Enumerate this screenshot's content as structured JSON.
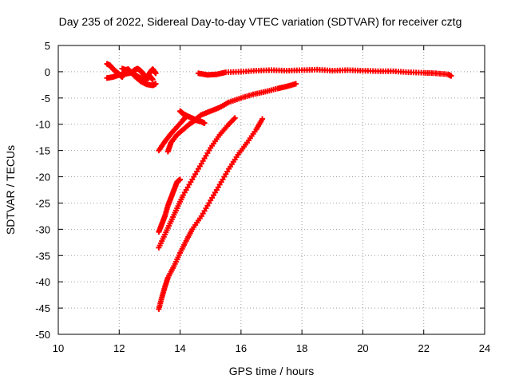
{
  "chart_data": {
    "type": "scatter",
    "title": "Day 235 of 2022, Sidereal Day-to-day VTEC variation (SDTVAR) for receiver cztg",
    "xlabel": "GPS time / hours",
    "ylabel": "SDTVAR / TECUs",
    "xlim": [
      10,
      24
    ],
    "ylim": [
      -50,
      5
    ],
    "xticks": [
      10,
      12,
      14,
      16,
      18,
      20,
      22,
      24
    ],
    "yticks": [
      5,
      0,
      -5,
      -10,
      -15,
      -20,
      -25,
      -30,
      -35,
      -40,
      -45,
      -50
    ],
    "grid": true,
    "legend": "none",
    "marker": "plus",
    "color": "#ff0000",
    "series": [
      {
        "points": [
          [
            11.6,
            1.5
          ],
          [
            11.7,
            1.2
          ],
          [
            11.8,
            0.5
          ],
          [
            11.9,
            0.0
          ],
          [
            12.0,
            -0.5
          ],
          [
            12.1,
            -1.0
          ],
          [
            12.2,
            0.3
          ],
          [
            12.3,
            0.5
          ],
          [
            12.5,
            -0.8
          ],
          [
            12.7,
            -1.8
          ],
          [
            12.9,
            -2.4
          ],
          [
            13.1,
            -2.6
          ],
          [
            13.2,
            -2.3
          ]
        ]
      },
      {
        "points": [
          [
            11.6,
            -1.2
          ],
          [
            11.8,
            -1.0
          ],
          [
            12.0,
            -0.6
          ],
          [
            12.2,
            -0.4
          ],
          [
            12.4,
            -0.2
          ],
          [
            12.5,
            0.3
          ],
          [
            12.6,
            0.6
          ],
          [
            12.7,
            0.2
          ],
          [
            12.8,
            -0.5
          ],
          [
            12.9,
            -1.0
          ],
          [
            13.0,
            -0.8
          ],
          [
            13.1,
            -1.5
          ]
        ]
      },
      {
        "points": [
          [
            12.1,
            0.6
          ],
          [
            12.3,
            0.2
          ],
          [
            12.5,
            -0.5
          ],
          [
            12.7,
            -1.2
          ],
          [
            12.9,
            -1.6
          ],
          [
            13.0,
            -0.2
          ],
          [
            13.1,
            0.5
          ],
          [
            13.2,
            -0.3
          ]
        ]
      },
      {
        "points": [
          [
            14.6,
            -0.3
          ],
          [
            14.9,
            -0.6
          ],
          [
            15.2,
            -0.5
          ],
          [
            15.5,
            -0.1
          ],
          [
            16.0,
            0.0
          ],
          [
            16.5,
            0.2
          ],
          [
            17.0,
            0.3
          ],
          [
            17.5,
            0.2
          ],
          [
            18.0,
            0.3
          ],
          [
            18.5,
            0.4
          ],
          [
            19.0,
            0.2
          ],
          [
            19.5,
            0.3
          ],
          [
            20.0,
            0.2
          ],
          [
            20.5,
            0.1
          ],
          [
            21.0,
            0.1
          ],
          [
            21.5,
            -0.1
          ],
          [
            22.0,
            -0.2
          ],
          [
            22.4,
            -0.3
          ],
          [
            22.8,
            -0.5
          ],
          [
            22.9,
            -0.8
          ]
        ]
      },
      {
        "points": [
          [
            13.3,
            -15.0
          ],
          [
            13.5,
            -13.3
          ],
          [
            13.7,
            -11.8
          ],
          [
            13.9,
            -10.5
          ],
          [
            14.1,
            -9.2
          ],
          [
            14.2,
            -8.5
          ]
        ]
      },
      {
        "points": [
          [
            14.0,
            -7.5
          ],
          [
            14.1,
            -8.0
          ],
          [
            14.3,
            -8.6
          ],
          [
            14.5,
            -9.1
          ],
          [
            14.7,
            -8.2
          ],
          [
            15.0,
            -7.5
          ],
          [
            15.3,
            -6.8
          ],
          [
            15.6,
            -5.8
          ],
          [
            16.0,
            -5.0
          ],
          [
            16.4,
            -4.3
          ],
          [
            16.8,
            -3.8
          ],
          [
            17.2,
            -3.2
          ],
          [
            17.5,
            -2.8
          ],
          [
            17.8,
            -2.3
          ]
        ]
      },
      {
        "points": [
          [
            13.6,
            -15.2
          ],
          [
            13.7,
            -13.5
          ],
          [
            13.9,
            -12.0
          ],
          [
            14.1,
            -11.0
          ],
          [
            14.3,
            -10.0
          ],
          [
            14.5,
            -9.2
          ],
          [
            14.7,
            -9.5
          ],
          [
            14.8,
            -9.8
          ]
        ]
      },
      {
        "points": [
          [
            13.3,
            -30.5
          ],
          [
            13.4,
            -29.0
          ],
          [
            13.5,
            -27.5
          ],
          [
            13.6,
            -25.5
          ],
          [
            13.7,
            -24.0
          ],
          [
            13.8,
            -22.5
          ],
          [
            13.9,
            -21.0
          ],
          [
            14.0,
            -20.5
          ]
        ]
      },
      {
        "points": [
          [
            13.3,
            -33.5
          ],
          [
            13.5,
            -31.0
          ],
          [
            13.7,
            -28.5
          ],
          [
            13.9,
            -26.0
          ],
          [
            14.1,
            -23.5
          ],
          [
            14.4,
            -20.5
          ],
          [
            14.7,
            -17.5
          ],
          [
            15.0,
            -14.5
          ],
          [
            15.3,
            -12.0
          ],
          [
            15.6,
            -10.0
          ],
          [
            15.8,
            -8.8
          ]
        ]
      },
      {
        "points": [
          [
            13.3,
            -45.2
          ],
          [
            13.4,
            -43.0
          ],
          [
            13.5,
            -41.0
          ],
          [
            13.6,
            -39.2
          ],
          [
            13.8,
            -37.0
          ],
          [
            14.0,
            -34.5
          ],
          [
            14.2,
            -32.2
          ],
          [
            14.4,
            -30.0
          ],
          [
            14.7,
            -27.5
          ],
          [
            15.0,
            -24.5
          ],
          [
            15.3,
            -21.5
          ],
          [
            15.6,
            -18.5
          ],
          [
            15.9,
            -15.8
          ],
          [
            16.2,
            -13.5
          ],
          [
            16.5,
            -11.0
          ],
          [
            16.7,
            -9.0
          ]
        ]
      }
    ]
  }
}
